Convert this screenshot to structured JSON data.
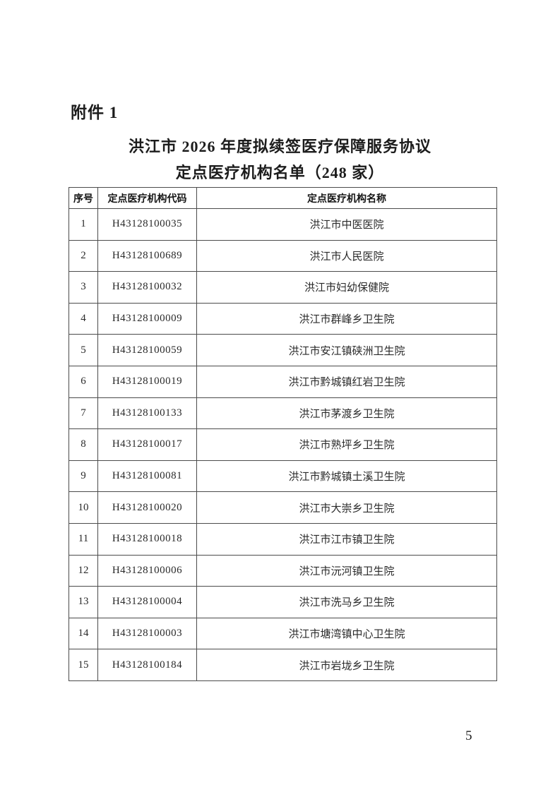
{
  "page": {
    "attachment_label": "附件 1",
    "title_line1": "洪江市 2026 年度拟续签医疗保障服务协议",
    "title_line2": "定点医疗机构名单（248 家）",
    "page_number": "5",
    "background_color": "#ffffff",
    "text_color": "#1c1c1c",
    "table_border_color": "#4b4b4b"
  },
  "table": {
    "headers": [
      "序号",
      "定点医疗机构代码",
      "定点医疗机构名称"
    ],
    "rows": [
      {
        "no": "1",
        "code": "H43128100035",
        "name": "洪江市中医医院"
      },
      {
        "no": "2",
        "code": "H43128100689",
        "name": "洪江市人民医院"
      },
      {
        "no": "3",
        "code": "H43128100032",
        "name": "洪江市妇幼保健院"
      },
      {
        "no": "4",
        "code": "H43128100009",
        "name": "洪江市群峰乡卫生院"
      },
      {
        "no": "5",
        "code": "H43128100059",
        "name": "洪江市安江镇硖洲卫生院"
      },
      {
        "no": "6",
        "code": "H43128100019",
        "name": "洪江市黔城镇红岩卫生院"
      },
      {
        "no": "7",
        "code": "H43128100133",
        "name": "洪江市茅渡乡卫生院"
      },
      {
        "no": "8",
        "code": "H43128100017",
        "name": "洪江市熟坪乡卫生院"
      },
      {
        "no": "9",
        "code": "H43128100081",
        "name": "洪江市黔城镇土溪卫生院"
      },
      {
        "no": "10",
        "code": "H43128100020",
        "name": "洪江市大崇乡卫生院"
      },
      {
        "no": "11",
        "code": "H43128100018",
        "name": "洪江市江市镇卫生院"
      },
      {
        "no": "12",
        "code": "H43128100006",
        "name": "洪江市沅河镇卫生院"
      },
      {
        "no": "13",
        "code": "H43128100004",
        "name": "洪江市洗马乡卫生院"
      },
      {
        "no": "14",
        "code": "H43128100003",
        "name": "洪江市塘湾镇中心卫生院"
      },
      {
        "no": "15",
        "code": "H43128100184",
        "name": "洪江市岩垅乡卫生院"
      }
    ]
  }
}
